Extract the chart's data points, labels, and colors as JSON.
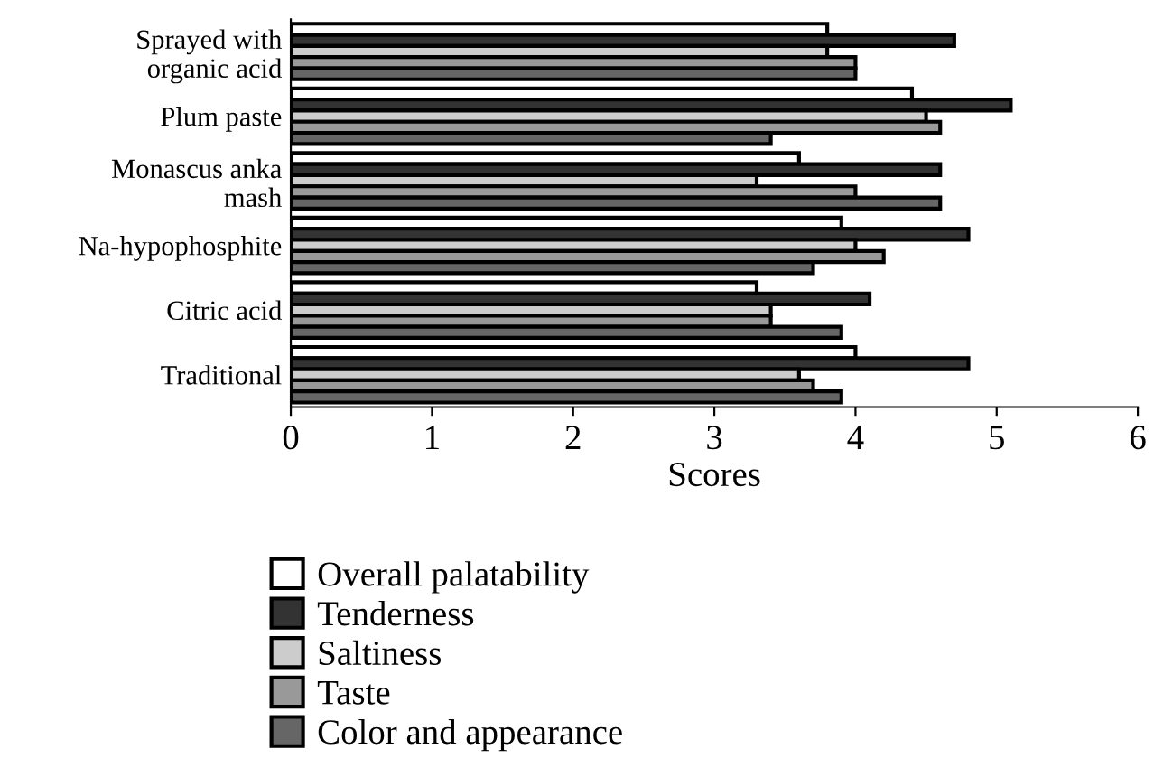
{
  "chart_data": {
    "type": "bar",
    "orientation": "horizontal",
    "xlabel": "Scores",
    "categories": [
      "Sprayed with\norganic acid",
      "Plum paste",
      "Monascus anka\nmash",
      "Na-hypophosphite",
      "Citric acid",
      "Traditional"
    ],
    "series": [
      {
        "name": "Overall palatability",
        "color": "#ffffff",
        "values": [
          3.8,
          4.4,
          3.6,
          3.9,
          3.3,
          4.0
        ]
      },
      {
        "name": "Tenderness",
        "color": "#333333",
        "values": [
          4.7,
          5.1,
          4.6,
          4.8,
          4.1,
          4.8
        ]
      },
      {
        "name": "Saltiness",
        "color": "#cccccc",
        "values": [
          3.8,
          4.5,
          3.3,
          4.0,
          3.4,
          3.6
        ]
      },
      {
        "name": "Taste",
        "color": "#999999",
        "values": [
          4.0,
          4.6,
          4.0,
          4.2,
          3.4,
          3.7
        ]
      },
      {
        "name": "Color and appearance",
        "color": "#666666",
        "values": [
          4.0,
          3.4,
          4.6,
          3.7,
          3.9,
          3.9
        ]
      }
    ],
    "xlim": [
      0,
      6
    ],
    "xticks": [
      0,
      1,
      2,
      3,
      4,
      5,
      6
    ],
    "grid": false,
    "legend": "bottom"
  }
}
